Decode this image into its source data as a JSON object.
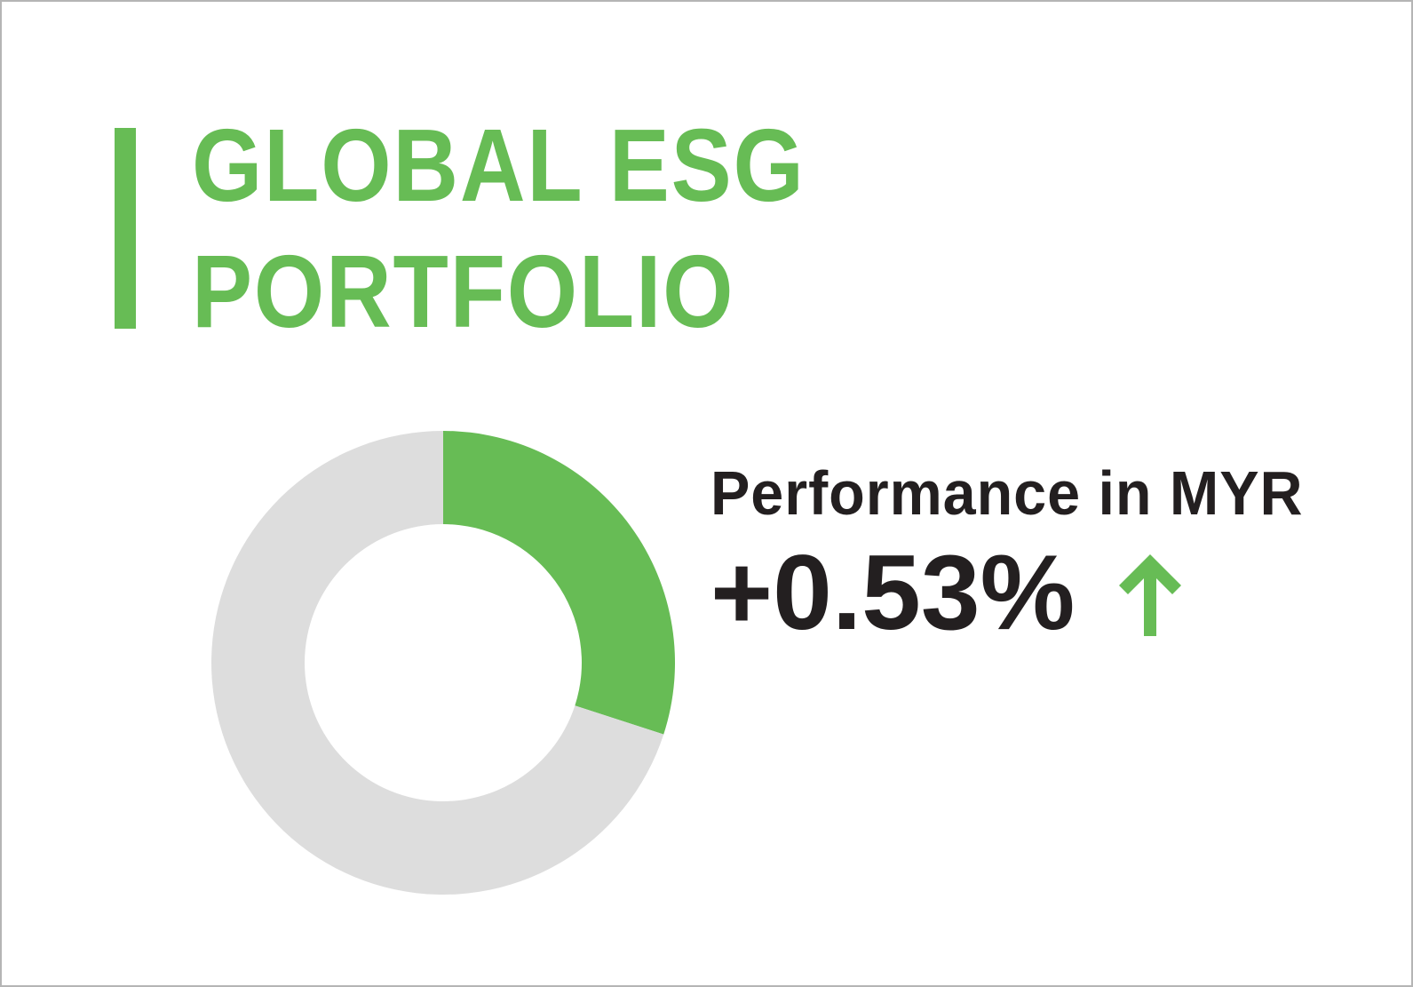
{
  "title_lines": [
    "GLOBAL ESG",
    "PORTFOLIO"
  ],
  "performance": {
    "label": "Performance in MYR",
    "value": "+0.53%",
    "direction_icon": "arrow-up-icon"
  },
  "colors": {
    "accent": "#67BC55",
    "remainder": "#DDDDDD",
    "text": "#231F20"
  },
  "chart_data": {
    "type": "pie",
    "variant": "donut",
    "slices": [
      {
        "value": 30,
        "color": "#67BC55"
      },
      {
        "value": 70,
        "color": "#DDDDDD"
      }
    ],
    "start": "12 o'clock, clockwise"
  }
}
